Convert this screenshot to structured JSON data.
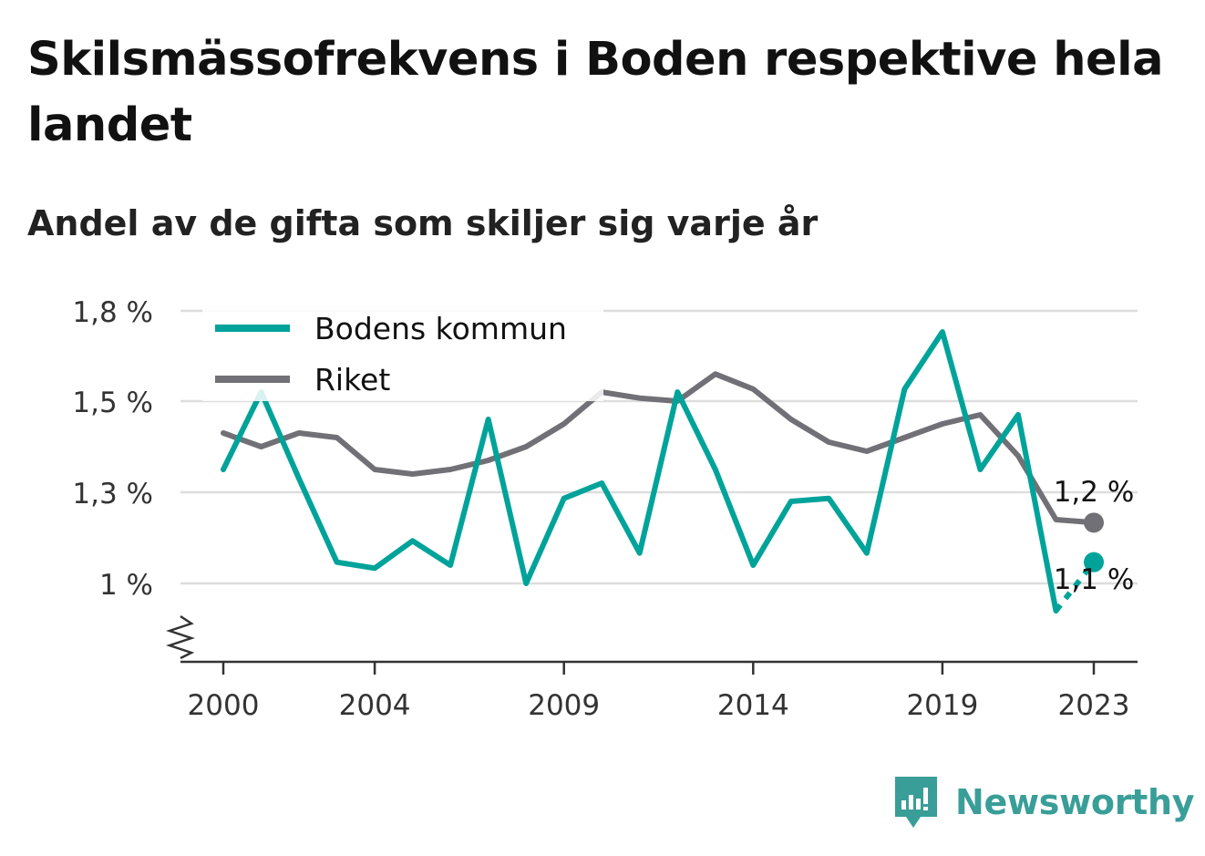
{
  "title": "Skilsmässofrekvens i Boden respektive hela landet",
  "subtitle": "Andel av de gifta som skiljer sig varje år",
  "brand": {
    "name": "Newsworthy",
    "icon": "newsworthy-logo-icon",
    "color": "#3a9e98"
  },
  "chart_data": {
    "type": "line",
    "x": [
      2000,
      2001,
      2002,
      2003,
      2004,
      2005,
      2006,
      2007,
      2008,
      2009,
      2010,
      2011,
      2012,
      2013,
      2014,
      2015,
      2016,
      2017,
      2018,
      2019,
      2020,
      2021,
      2022,
      2023
    ],
    "x_ticks": [
      2000,
      2004,
      2009,
      2014,
      2019,
      2023
    ],
    "x_tick_labels": [
      "2000",
      "2004",
      "2009",
      "2014",
      "2019",
      "2023"
    ],
    "y_ticks": [
      1.0,
      1.3,
      1.5,
      1.8
    ],
    "y_tick_labels": [
      "1 %",
      "1,3 %",
      "1,5 %",
      "1,8 %"
    ],
    "ylim": [
      0.83,
      1.8
    ],
    "y_axis_break": true,
    "grid": true,
    "legend_placement": "top-left",
    "series": [
      {
        "name": "Bodens kommun",
        "color": "#00a39a",
        "values": [
          1.35,
          1.53,
          1.33,
          1.07,
          1.05,
          1.14,
          1.06,
          1.46,
          1.0,
          1.28,
          1.32,
          1.1,
          1.53,
          1.35,
          1.06,
          1.27,
          1.28,
          1.1,
          1.54,
          1.73,
          1.35,
          1.47,
          0.94,
          1.07
        ],
        "end_label": "1,1 %",
        "dashed_last_segment": true
      },
      {
        "name": "Riket",
        "color": "#717076",
        "values": [
          1.43,
          1.4,
          1.43,
          1.42,
          1.35,
          1.34,
          1.35,
          1.37,
          1.4,
          1.45,
          1.53,
          1.51,
          1.5,
          1.59,
          1.54,
          1.46,
          1.41,
          1.39,
          1.42,
          1.45,
          1.47,
          1.38,
          1.21,
          1.2
        ],
        "end_label": "1,2 %"
      }
    ]
  }
}
